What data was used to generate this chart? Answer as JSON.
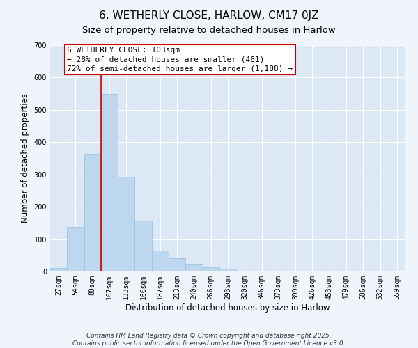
{
  "title": "6, WETHERLY CLOSE, HARLOW, CM17 0JZ",
  "subtitle": "Size of property relative to detached houses in Harlow",
  "xlabel": "Distribution of detached houses by size in Harlow",
  "ylabel": "Number of detached properties",
  "bar_labels": [
    "27sqm",
    "54sqm",
    "80sqm",
    "107sqm",
    "133sqm",
    "160sqm",
    "187sqm",
    "213sqm",
    "240sqm",
    "266sqm",
    "293sqm",
    "320sqm",
    "346sqm",
    "373sqm",
    "399sqm",
    "426sqm",
    "453sqm",
    "479sqm",
    "506sqm",
    "532sqm",
    "559sqm"
  ],
  "bar_values": [
    10,
    138,
    365,
    550,
    293,
    158,
    65,
    40,
    22,
    13,
    8,
    0,
    0,
    2,
    0,
    0,
    0,
    0,
    0,
    0,
    0
  ],
  "bar_color": "#bdd7ee",
  "bar_edge_color": "#9ec4e0",
  "vline_x_index": 3,
  "vline_color": "#cc0000",
  "annotation_lines": [
    "6 WETHERLY CLOSE: 103sqm",
    "← 28% of detached houses are smaller (461)",
    "72% of semi-detached houses are larger (1,188) →"
  ],
  "annotation_box_color": "#ffffff",
  "annotation_box_edge_color": "#cc0000",
  "ylim": [
    0,
    700
  ],
  "yticks": [
    0,
    100,
    200,
    300,
    400,
    500,
    600,
    700
  ],
  "background_color": "#f0f4fc",
  "plot_background_color": "#dce8f5",
  "grid_color": "#ffffff",
  "footer_lines": [
    "Contains HM Land Registry data © Crown copyright and database right 2025.",
    "Contains public sector information licensed under the Open Government Licence v3.0."
  ],
  "title_fontsize": 11,
  "subtitle_fontsize": 9.5,
  "axis_label_fontsize": 8.5,
  "tick_fontsize": 7,
  "annotation_fontsize": 8,
  "footer_fontsize": 6.5
}
